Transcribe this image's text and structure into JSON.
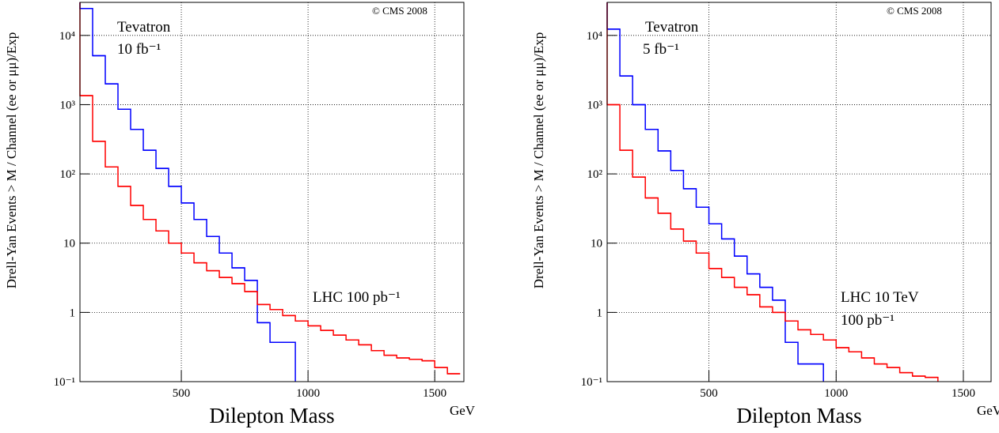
{
  "chart_data": [
    {
      "type": "histogram",
      "log_y": true,
      "grid": true,
      "xlabel": "Dilepton Mass",
      "xunit": "GeV",
      "ylabel": "Drell-Yan Events > M / Channel (ee or μμ)/Exp",
      "annotations": [
        "© CMS 2008",
        "Tevatron",
        "10 fb⁻¹",
        "LHC 100 pb⁻¹"
      ],
      "xlim": [
        100,
        1615
      ],
      "ylim": [
        0.1,
        30000
      ],
      "xticks": [
        500,
        1000,
        1500
      ],
      "yticks": [
        {
          "value": 0.1,
          "label": "10⁻¹"
        },
        1,
        10,
        {
          "value": 100,
          "label": "10²"
        },
        {
          "value": 1000,
          "label": "10³"
        },
        {
          "value": 10000,
          "label": "10⁴"
        }
      ],
      "bins": [
        100,
        150,
        200,
        250,
        300,
        350,
        400,
        450,
        500,
        550,
        600,
        650,
        700,
        750,
        800,
        850,
        900,
        950,
        1000,
        1050,
        1100,
        1150,
        1200,
        1250,
        1300,
        1350,
        1400,
        1450,
        1500,
        1550,
        1600
      ],
      "series": [
        {
          "name": "Tevatron",
          "color": "#0000ff",
          "values": [
            24500,
            5100,
            2000,
            860,
            440,
            220,
            120,
            66,
            38,
            22,
            12.5,
            7.2,
            4.4,
            2.9,
            0.71,
            0.37,
            0.37,
            null,
            null,
            null,
            null,
            null,
            null,
            null,
            null,
            null,
            null,
            null,
            null,
            null
          ]
        },
        {
          "name": "LHC",
          "color": "#ff0000",
          "values": [
            1350,
            295,
            126,
            66,
            35,
            22,
            15,
            10,
            7.2,
            5.2,
            4.0,
            3.2,
            2.6,
            2.0,
            1.3,
            1.1,
            0.9,
            0.75,
            0.64,
            0.55,
            0.47,
            0.4,
            0.34,
            0.28,
            0.24,
            0.22,
            0.21,
            0.2,
            0.16,
            0.13
          ]
        }
      ]
    },
    {
      "type": "histogram",
      "log_y": true,
      "grid": true,
      "xlabel": "Dilepton Mass",
      "xunit": "GeV",
      "ylabel": "Drell-Yan Events > M / Channel (ee or μμ)/Exp",
      "annotations": [
        "© CMS 2008",
        "Tevatron",
        "5 fb⁻¹",
        "LHC 10 TeV",
        "100 pb⁻¹"
      ],
      "xlim": [
        100,
        1609
      ],
      "ylim": [
        0.1,
        30000
      ],
      "xticks": [
        500,
        1000,
        1500
      ],
      "yticks": [
        {
          "value": 0.1,
          "label": "10⁻¹"
        },
        1,
        10,
        {
          "value": 100,
          "label": "10²"
        },
        {
          "value": 1000,
          "label": "10³"
        },
        {
          "value": 10000,
          "label": "10⁴"
        }
      ],
      "bins": [
        100,
        150,
        200,
        250,
        300,
        350,
        400,
        450,
        500,
        550,
        600,
        650,
        700,
        750,
        800,
        850,
        900,
        950,
        1000,
        1050,
        1100,
        1150,
        1200,
        1250,
        1300,
        1350,
        1400,
        1450,
        1500,
        1550,
        1600
      ],
      "series": [
        {
          "name": "Tevatron",
          "color": "#0000ff",
          "values": [
            12300,
            2600,
            1000,
            440,
            215,
            112,
            61,
            33,
            19,
            11.5,
            6.5,
            3.6,
            2.3,
            1.5,
            0.37,
            0.18,
            0.18,
            null,
            null,
            null,
            null,
            null,
            null,
            null,
            null,
            null,
            null,
            null,
            null,
            null
          ]
        },
        {
          "name": "LHC",
          "color": "#ff0000",
          "values": [
            1000,
            220,
            90,
            45,
            27,
            16,
            10.7,
            7.2,
            4.3,
            3.2,
            2.3,
            1.8,
            1.2,
            1.0,
            0.75,
            0.56,
            0.48,
            0.4,
            0.31,
            0.27,
            0.22,
            0.18,
            0.16,
            0.135,
            0.12,
            0.115,
            null,
            null,
            null,
            null
          ]
        }
      ]
    }
  ]
}
